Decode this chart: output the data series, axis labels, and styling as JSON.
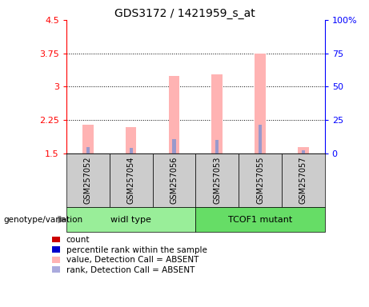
{
  "title": "GDS3172 / 1421959_s_at",
  "samples": [
    "GSM257052",
    "GSM257054",
    "GSM257056",
    "GSM257053",
    "GSM257055",
    "GSM257057"
  ],
  "pink_values": [
    2.15,
    2.1,
    3.25,
    3.28,
    3.75,
    1.65
  ],
  "blue_values": [
    1.65,
    1.62,
    1.82,
    1.8,
    2.15,
    1.58
  ],
  "base_value": 1.5,
  "ylim_left": [
    1.5,
    4.5
  ],
  "ylim_right": [
    0,
    100
  ],
  "yticks_left": [
    1.5,
    2.25,
    3.0,
    3.75,
    4.5
  ],
  "yticks_right": [
    0,
    25,
    50,
    75,
    100
  ],
  "ytick_labels_left": [
    "1.5",
    "2.25",
    "3",
    "3.75",
    "4.5"
  ],
  "ytick_labels_right": [
    "0",
    "25",
    "50",
    "75",
    "100%"
  ],
  "dotted_lines": [
    2.25,
    3.0,
    3.75
  ],
  "bar_color_pink": "#FFB3B3",
  "bar_color_blue": "#9999CC",
  "pink_bar_width": 0.25,
  "blue_bar_width": 0.08,
  "groups_info": [
    {
      "start": 0,
      "end": 2,
      "label": "widl type",
      "color": "#99EE99"
    },
    {
      "start": 3,
      "end": 5,
      "label": "TCOF1 mutant",
      "color": "#66DD66"
    }
  ],
  "legend_items": [
    {
      "color": "#CC0000",
      "label": "count"
    },
    {
      "color": "#0000CC",
      "label": "percentile rank within the sample"
    },
    {
      "color": "#FFB3B3",
      "label": "value, Detection Call = ABSENT"
    },
    {
      "color": "#AAAADD",
      "label": "rank, Detection Call = ABSENT"
    }
  ],
  "genotype_label": "genotype/variation",
  "title_fontsize": 10,
  "tick_fontsize": 8,
  "sample_fontsize": 7,
  "group_fontsize": 8,
  "legend_fontsize": 7.5
}
